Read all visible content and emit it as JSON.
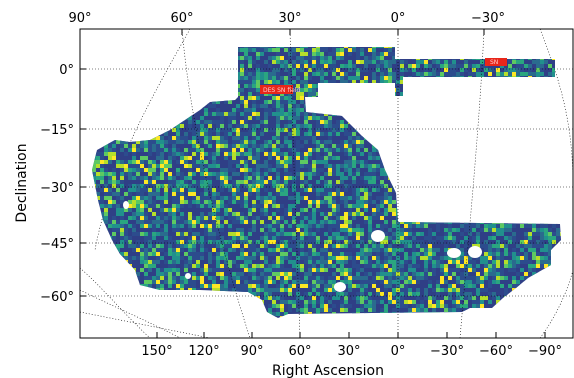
{
  "chart_data": {
    "type": "heatmap",
    "projection": "sky map (McBryde-Thomas flat-polar quartic style), RA increasing to the left",
    "xlabel": "Right Ascension",
    "ylabel": "Declination",
    "x_ticks_bottom": [
      "150°",
      "120°",
      "90°",
      "60°",
      "30°",
      "0°",
      "−30°",
      "−60°",
      "−90°"
    ],
    "x_ticks_top": [
      "90°",
      "60°",
      "30°",
      "0°",
      "−30°"
    ],
    "y_ticks": [
      "0°",
      "−15°",
      "−30°",
      "−45°",
      "−60°"
    ],
    "y_tick_values": [
      0,
      -15,
      -30,
      -45,
      -60
    ],
    "ra_range": [
      180,
      -120
    ],
    "dec_range": [
      -75,
      10
    ],
    "gridlines": true,
    "colormap": "viridis",
    "footprint": "survey footprint with a large southern region (Dec −65° to −10°), a northern strip (Dec ≈ −7° to +5°) and an equatorial stripe extending to RA ≈ −60°",
    "masked_regions": 6,
    "highlight_boxes": [
      {
        "color": "#e8261a",
        "label": "DES SN field"
      },
      {
        "color": "#e8261a",
        "label": "SN"
      }
    ],
    "colors": {
      "low": "#2f3f86",
      "mid": "#21908d",
      "high": "#fde725",
      "highlight": "#e8261a",
      "grid": "#000000"
    }
  }
}
